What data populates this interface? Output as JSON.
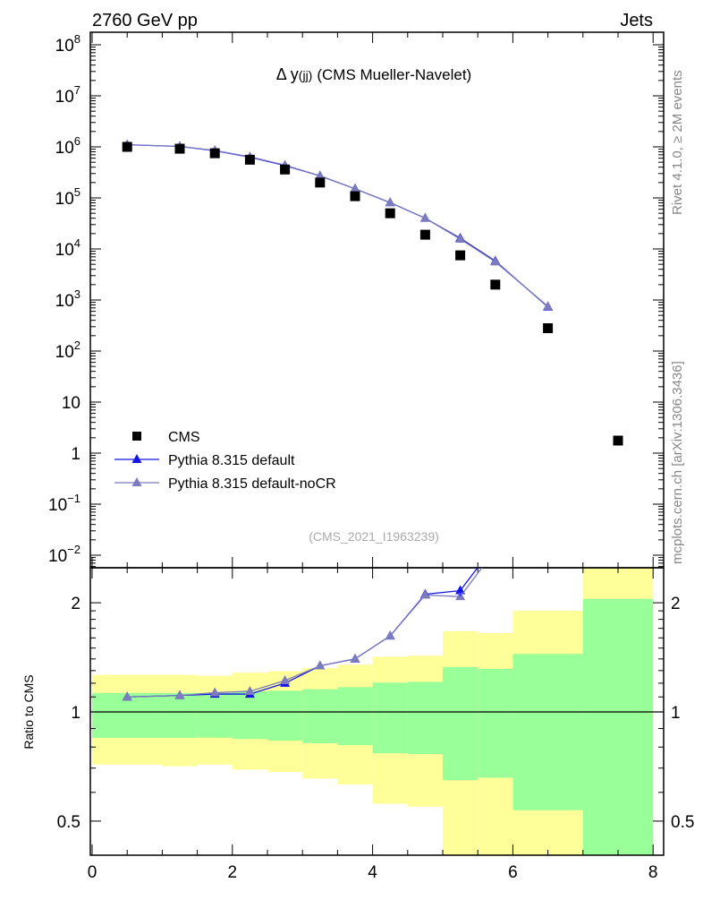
{
  "header": {
    "left": "2760 GeV pp",
    "right": "Jets"
  },
  "side_text": {
    "top": "Rivet 4.1.0, ≥ 2M events",
    "bottom": "mcplots.cern.ch [arXiv:1306.3436]"
  },
  "colors": {
    "data": "#000000",
    "default": "#1515e6",
    "nocr": "#7b7bbd",
    "yellow": "#ffff99",
    "green": "#99ff99"
  },
  "chart_data": [
    {
      "type": "scatter",
      "title_main": "Δ y",
      "title_sub": "(jj)",
      "title_rest": "(CMS Mueller-Navelet)",
      "source": "(CMS_2021_I1963239)",
      "yscale": "log",
      "ylim": [
        0.0056,
        180000000.0
      ],
      "xlim": [
        -0.03,
        8.15
      ],
      "y_tick_labels": [
        {
          "v": 100000000.0,
          "base": "10",
          "exp": "8"
        },
        {
          "v": 10000000.0,
          "base": "10",
          "exp": "7"
        },
        {
          "v": 1000000.0,
          "base": "10",
          "exp": "6"
        },
        {
          "v": 100000.0,
          "base": "10",
          "exp": "5"
        },
        {
          "v": 10000.0,
          "base": "10",
          "exp": "4"
        },
        {
          "v": 1000.0,
          "base": "10",
          "exp": "3"
        },
        {
          "v": 100.0,
          "base": "10",
          "exp": "2"
        },
        {
          "v": 10,
          "base": "10",
          "exp": ""
        },
        {
          "v": 1,
          "base": "1",
          "exp": ""
        },
        {
          "v": 0.1,
          "base": "10",
          "exp": "−1"
        },
        {
          "v": 0.01,
          "base": "10",
          "exp": "−2"
        }
      ],
      "legend": {
        "placement": "bottom-left",
        "entries": [
          "CMS",
          "Pythia 8.315 default",
          "Pythia 8.315 default-noCR"
        ]
      },
      "x": [
        0.5,
        1.25,
        1.75,
        2.25,
        2.75,
        3.25,
        3.75,
        4.25,
        4.75,
        5.25,
        5.75,
        6.5,
        7.5
      ],
      "bin_edges": [
        0,
        1,
        1.5,
        2,
        2.5,
        3,
        3.5,
        4,
        4.5,
        5,
        5.5,
        6,
        7,
        8
      ],
      "series": [
        {
          "name": "CMS",
          "values": [
            1000000.0,
            920000.0,
            750000.0,
            560000.0,
            360000.0,
            200000.0,
            108000.0,
            50000.0,
            19000.0,
            7500.0,
            2000.0,
            280,
            1.76
          ]
        },
        {
          "name": "Pythia 8.315 default",
          "values": [
            1100000.0,
            1020000.0,
            840000.0,
            630000.0,
            430000.0,
            270000.0,
            151000.0,
            81000.0,
            40000.0,
            16200.0,
            5800.0,
            730,
            null
          ]
        },
        {
          "name": "Pythia 8.315 default-noCR",
          "values": [
            1100000.0,
            1020000.0,
            850000.0,
            640000.0,
            440000.0,
            270000.0,
            151000.0,
            81000.0,
            40000.0,
            15600.0,
            5600.0,
            750,
            null
          ]
        }
      ]
    },
    {
      "type": "line",
      "ylabel": "Ratio to CMS",
      "yscale": "log",
      "ylim": [
        0.4,
        2.5
      ],
      "y_tick_labels": [
        {
          "v": 2,
          "label": "2"
        },
        {
          "v": 1,
          "label": "1"
        },
        {
          "v": 0.5,
          "label": "0.5"
        }
      ],
      "x_tick_labels": [
        "0",
        "2",
        "4",
        "6",
        "8"
      ],
      "bands": {
        "yellow_hi": [
          1.265,
          1.265,
          1.258,
          1.283,
          1.295,
          1.32,
          1.35,
          1.42,
          1.43,
          1.67,
          1.65,
          1.9,
          3.0
        ],
        "green_hi": [
          1.128,
          1.128,
          1.128,
          1.139,
          1.144,
          1.155,
          1.17,
          1.204,
          1.21,
          1.33,
          1.315,
          1.445,
          2.05
        ],
        "green_lo": [
          0.848,
          0.848,
          0.849,
          0.842,
          0.834,
          0.82,
          0.81,
          0.769,
          0.765,
          0.648,
          0.659,
          0.536,
          0.35
        ],
        "yellow_lo": [
          0.716,
          0.708,
          0.716,
          0.693,
          0.683,
          0.655,
          0.631,
          0.558,
          0.548,
          0.35,
          0.35,
          0.35,
          0.35
        ]
      },
      "series": [
        {
          "name": "Pythia 8.315 default",
          "values": [
            1.1,
            1.11,
            1.12,
            1.12,
            1.2,
            1.34,
            1.4,
            1.62,
            2.11,
            2.16,
            2.9,
            2.6
          ]
        },
        {
          "name": "Pythia 8.315 default-noCR",
          "values": [
            1.1,
            1.11,
            1.13,
            1.14,
            1.22,
            1.34,
            1.4,
            1.62,
            2.1,
            2.08,
            2.8,
            2.7
          ]
        }
      ]
    }
  ]
}
